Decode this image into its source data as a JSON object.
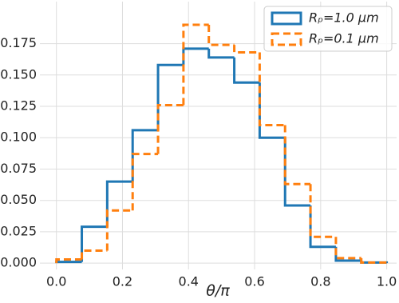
{
  "chart_data": {
    "type": "histogram-step",
    "x_label": "θ/π",
    "bins": [
      0,
      0.0769,
      0.1538,
      0.2308,
      0.3077,
      0.3846,
      0.4615,
      0.5385,
      0.6154,
      0.6923,
      0.7692,
      0.8462,
      0.9231,
      1.0
    ],
    "series": [
      {
        "name": "Rₚ=1.0 μm",
        "color": "#1f77b4",
        "dashed": false,
        "values": [
          0.001,
          0.029,
          0.065,
          0.106,
          0.158,
          0.171,
          0.164,
          0.144,
          0.1,
          0.046,
          0.013,
          0.002,
          0.0005
        ]
      },
      {
        "name": "Rₚ=0.1 μm",
        "color": "#ff7f0e",
        "dashed": true,
        "values": [
          0.003,
          0.01,
          0.042,
          0.087,
          0.126,
          0.19,
          0.174,
          0.168,
          0.11,
          0.063,
          0.021,
          0.004,
          0.0005
        ]
      }
    ],
    "xlim": [
      -0.05,
      1.03
    ],
    "ylim": [
      -0.005,
      0.2085
    ],
    "xticks": [
      {
        "value": 0,
        "label": "0.0"
      },
      {
        "value": 0.2,
        "label": "0.2"
      },
      {
        "value": 0.4,
        "label": "0.4"
      },
      {
        "value": 0.6,
        "label": "0.6"
      },
      {
        "value": 0.8,
        "label": "0.8"
      },
      {
        "value": 1,
        "label": "1.0"
      }
    ],
    "yticks": [
      {
        "value": 0,
        "label": "0.000"
      },
      {
        "value": 0.025,
        "label": "0.025"
      },
      {
        "value": 0.05,
        "label": "0.050"
      },
      {
        "value": 0.075,
        "label": "0.075"
      },
      {
        "value": 0.1,
        "label": "0.100"
      },
      {
        "value": 0.125,
        "label": "0.125"
      },
      {
        "value": 0.15,
        "label": "0.150"
      },
      {
        "value": 0.175,
        "label": "0.175"
      }
    ],
    "grid": true,
    "legend": "upper right"
  }
}
